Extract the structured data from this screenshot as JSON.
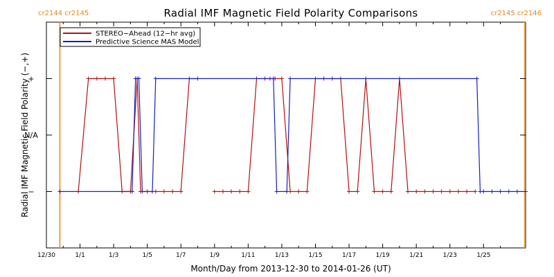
{
  "chart_data": {
    "type": "line",
    "title": "Radial IMF Magnetic Field Polarity Comparisons",
    "xlabel": "Month/Day from 2013-12-30 to 2014-01-26 (UT)",
    "ylabel": "Radial IMF Magnetic Field Polarity (−,+)",
    "xlim": [
      0,
      28.5
    ],
    "ylim": [
      -2,
      2
    ],
    "x_tick_values": [
      0,
      2,
      4,
      6,
      8,
      10,
      12,
      14,
      16,
      18,
      20,
      22,
      24,
      26
    ],
    "x_tick_labels": [
      "12/30",
      "1/1",
      "1/3",
      "1/5",
      "1/7",
      "1/9",
      "1/11",
      "1/13",
      "1/15",
      "1/17",
      "1/19",
      "1/21",
      "1/23",
      "1/25"
    ],
    "y_ticks": [
      {
        "value": 1,
        "label": "+"
      },
      {
        "value": 0,
        "label": "N/A"
      },
      {
        "value": -1,
        "label": "−"
      }
    ],
    "carrington_markers": [
      {
        "x": 0.8,
        "color": "#e8a040",
        "labels_left": [
          "cr2144",
          "cr2145"
        ]
      },
      {
        "x": 28.45,
        "color": "#e8a040",
        "labels_right": [
          "cr2145",
          "cr2146"
        ]
      }
    ],
    "legend": {
      "position": "top-left",
      "entries": [
        {
          "name": "STEREO−Ahead (12−hr avg)",
          "color": "#b01010"
        },
        {
          "name": "Predictive Science MAS Model",
          "color": "#1020c0"
        }
      ]
    },
    "series": [
      {
        "name": "STEREO−Ahead (12−hr avg)",
        "color": "#b01010",
        "markers": "plus",
        "segments": [
          [
            [
              1.9,
              -1
            ],
            [
              2.5,
              1
            ],
            [
              3.0,
              1
            ],
            [
              3.5,
              1
            ],
            [
              4.0,
              1
            ],
            [
              4.5,
              -1
            ],
            [
              5.0,
              -1
            ],
            [
              5.4,
              1
            ],
            [
              5.6,
              -1
            ],
            [
              6.0,
              -1
            ],
            [
              6.5,
              -1
            ],
            [
              7.0,
              -1
            ],
            [
              7.5,
              -1
            ],
            [
              8.0,
              -1
            ],
            [
              8.5,
              1
            ],
            [
              9.0,
              1
            ]
          ],
          [
            [
              10.0,
              -1
            ],
            [
              10.5,
              -1
            ],
            [
              11.0,
              -1
            ],
            [
              11.5,
              -1
            ],
            [
              12.0,
              -1
            ],
            [
              12.5,
              1
            ],
            [
              13.0,
              1
            ],
            [
              13.3,
              1
            ],
            [
              13.6,
              1
            ],
            [
              14.0,
              1
            ],
            [
              14.5,
              -1
            ],
            [
              15.0,
              -1
            ],
            [
              15.5,
              -1
            ],
            [
              16.0,
              1
            ],
            [
              16.5,
              1
            ],
            [
              17.0,
              1
            ],
            [
              17.5,
              1
            ],
            [
              18.0,
              -1
            ],
            [
              18.5,
              -1
            ],
            [
              19.0,
              1
            ],
            [
              19.5,
              -1
            ],
            [
              20.0,
              -1
            ],
            [
              20.5,
              -1
            ],
            [
              21.0,
              1
            ],
            [
              21.5,
              -1
            ],
            [
              22.0,
              -1
            ],
            [
              22.5,
              -1
            ],
            [
              23.0,
              -1
            ],
            [
              23.5,
              -1
            ],
            [
              24.0,
              -1
            ],
            [
              24.5,
              -1
            ],
            [
              25.0,
              -1
            ],
            [
              25.5,
              -1
            ]
          ]
        ]
      },
      {
        "name": "Predictive Science MAS Model",
        "color": "#1020c0",
        "markers": "plus",
        "segments": [
          [
            [
              0.8,
              -1
            ],
            [
              5.1,
              -1
            ],
            [
              5.3,
              1
            ],
            [
              5.5,
              1
            ],
            [
              5.7,
              -1
            ],
            [
              6.3,
              -1
            ],
            [
              6.5,
              1
            ],
            [
              13.5,
              1
            ],
            [
              13.7,
              -1
            ],
            [
              14.3,
              -1
            ],
            [
              14.5,
              1
            ],
            [
              25.6,
              1
            ],
            [
              25.8,
              -1
            ],
            [
              26.0,
              -1
            ],
            [
              26.5,
              -1
            ],
            [
              27.0,
              -1
            ],
            [
              27.5,
              -1
            ],
            [
              28.0,
              -1
            ],
            [
              28.5,
              -1
            ]
          ]
        ]
      }
    ]
  }
}
